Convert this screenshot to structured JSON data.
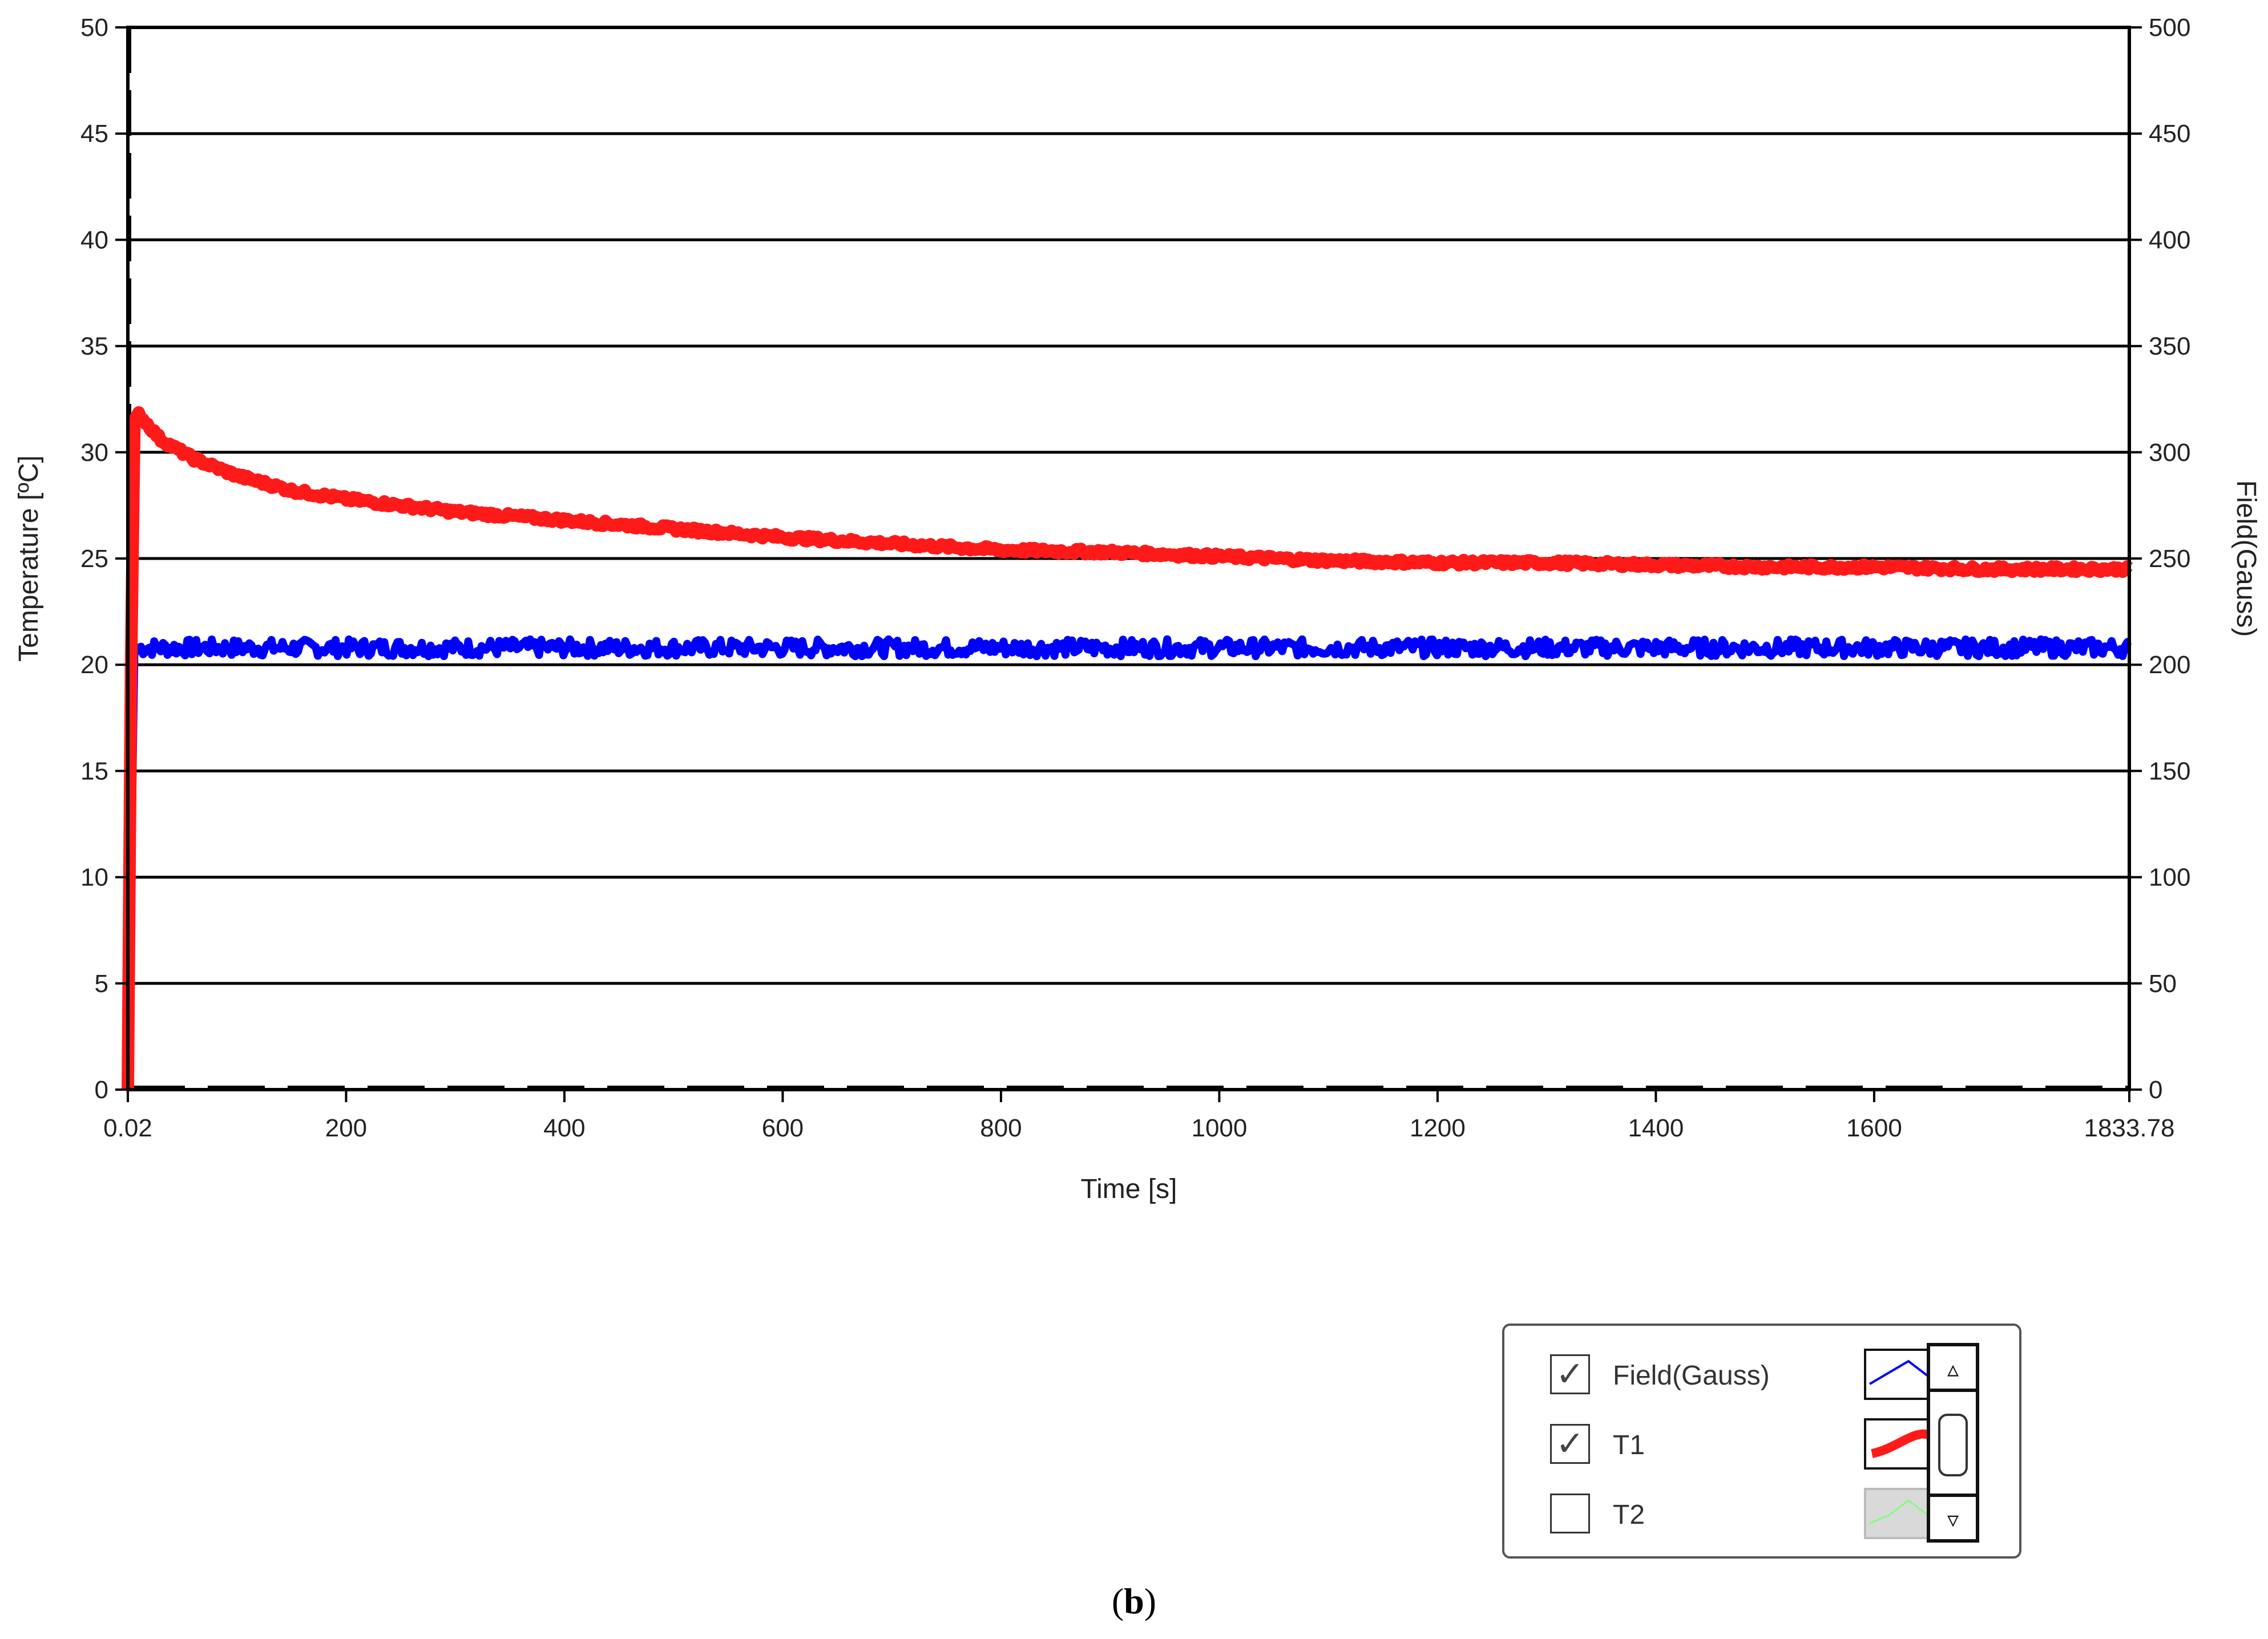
{
  "chart_data": {
    "type": "line",
    "x_axis": {
      "label": "Time [s]",
      "range": [
        0.02,
        1833.78
      ],
      "ticks": [
        "0.02",
        "200",
        "400",
        "600",
        "800",
        "1000",
        "1200",
        "1400",
        "1600",
        "1833.78"
      ]
    },
    "y_axis_left": {
      "label": "Temperature [ºC]",
      "range": [
        0,
        50
      ],
      "ticks": [
        0,
        5,
        10,
        15,
        20,
        25,
        30,
        35,
        40,
        45,
        50
      ]
    },
    "y_axis_right": {
      "label": "Field(Gauss)",
      "range": [
        0,
        500
      ],
      "ticks": [
        0,
        50,
        100,
        150,
        200,
        250,
        300,
        350,
        400,
        450,
        500
      ]
    },
    "grid": "horizontal",
    "series": [
      {
        "name": "Field(Gauss)",
        "axis": "right",
        "color": "#0000ff",
        "x": [
          0.02,
          3,
          6,
          10,
          50,
          100,
          200,
          400,
          600,
          800,
          1000,
          1200,
          1400,
          1600,
          1833.78
        ],
        "y": [
          0,
          100,
          205,
          208,
          208,
          208,
          208,
          208,
          208,
          208,
          208,
          208,
          208,
          208,
          208
        ]
      },
      {
        "name": "T1",
        "axis": "left",
        "color": "#ff1a1a",
        "x": [
          0.02,
          3,
          6,
          10,
          30,
          60,
          100,
          150,
          200,
          300,
          400,
          500,
          600,
          700,
          800,
          900,
          1000,
          1100,
          1200,
          1300,
          1400,
          1500,
          1600,
          1700,
          1833.78
        ],
        "y": [
          0,
          20,
          31.5,
          31.8,
          30.6,
          29.7,
          28.9,
          28.2,
          27.8,
          27.2,
          26.8,
          26.4,
          26.0,
          25.7,
          25.4,
          25.3,
          25.1,
          24.9,
          24.8,
          24.8,
          24.7,
          24.6,
          24.6,
          24.5,
          24.5
        ]
      },
      {
        "name": "T2",
        "axis": "left",
        "color": "#7fff7f",
        "visible": false,
        "x": [],
        "y": []
      }
    ],
    "baseline": {
      "style": "dashed",
      "color": "#000000",
      "y": 0
    }
  },
  "legend": {
    "items": [
      {
        "label": "Field(Gauss)",
        "checked": true,
        "check_glyph": "✓",
        "swatch_color": "#0000ff"
      },
      {
        "label": "T1",
        "checked": true,
        "check_glyph": "✓",
        "swatch_color": "#ff1a1a"
      },
      {
        "label": "T2",
        "checked": false,
        "check_glyph": "",
        "swatch_color": "#7fff7f"
      }
    ],
    "scroll_up_icon": "▵",
    "scroll_down_icon": "▿"
  },
  "caption": {
    "open": "(",
    "letter": "b",
    "close": ")"
  }
}
